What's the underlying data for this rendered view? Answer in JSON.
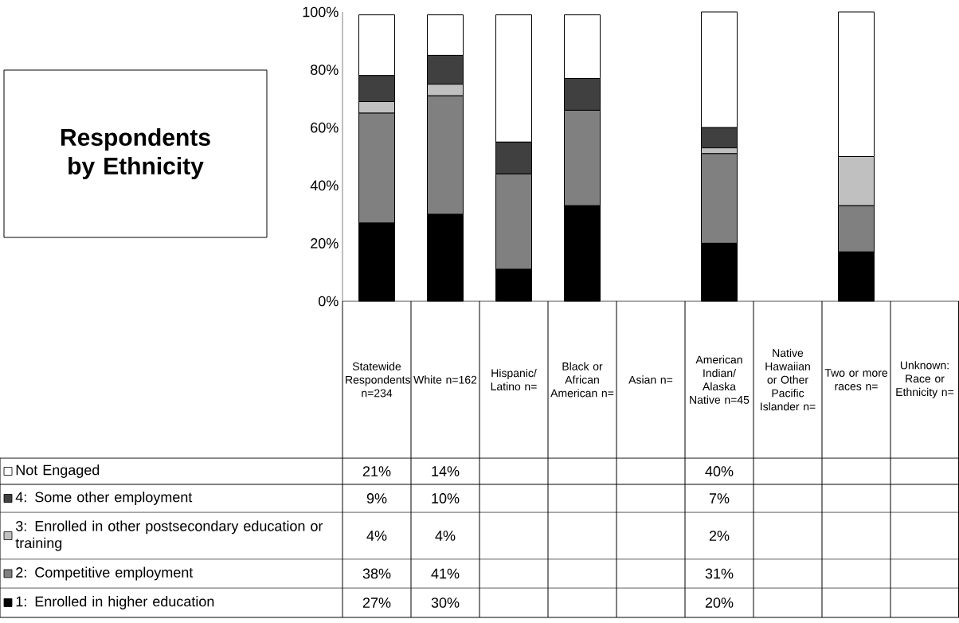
{
  "chart_data": {
    "type": "bar",
    "stacked": true,
    "title": "Respondents by Ethnicity",
    "categories": [
      "Statewide Respondents n=234",
      "White n=162",
      "Hispanic/ Latino n=",
      "Black or African American n=",
      "Asian n=",
      "American Indian/ Alaska Native n=45",
      "Native Hawaiian or Other Pacific Islander n=",
      "Two or more races n=",
      "Unknown: Race or Ethnicity n="
    ],
    "ylim": [
      0,
      100
    ],
    "yticks": [
      {
        "value": 0,
        "label": "0%"
      },
      {
        "value": 20,
        "label": "20%"
      },
      {
        "value": 40,
        "label": "40%"
      },
      {
        "value": 60,
        "label": "60%"
      },
      {
        "value": 80,
        "label": "80%"
      },
      {
        "value": 100,
        "label": "100%"
      }
    ],
    "legend": "bottom left",
    "series": [
      {
        "name": "1: Enrolled in higher education",
        "color": "#000000",
        "values": [
          27,
          30,
          11,
          33,
          null,
          20,
          null,
          17,
          null
        ],
        "value_labels": [
          "27%",
          "30%",
          null,
          null,
          null,
          "20%",
          null,
          null,
          null
        ]
      },
      {
        "name": "2: Competitive employment",
        "color": "#808080",
        "values": [
          38,
          41,
          33,
          33,
          null,
          31,
          null,
          16,
          null
        ],
        "value_labels": [
          "38%",
          "41%",
          null,
          null,
          null,
          "31%",
          null,
          null,
          null
        ]
      },
      {
        "name": "3: Enrolled in other postsecondary education or training",
        "color": "#c0c0c0",
        "values": [
          4,
          4,
          0,
          0,
          null,
          2,
          null,
          17,
          null
        ],
        "value_labels": [
          "4%",
          "4%",
          null,
          null,
          null,
          "2%",
          null,
          null,
          null
        ]
      },
      {
        "name": "4: Some other employment",
        "color": "#404040",
        "values": [
          9,
          10,
          11,
          11,
          null,
          7,
          null,
          0,
          null
        ],
        "value_labels": [
          "9%",
          "10%",
          null,
          null,
          null,
          "7%",
          null,
          null,
          null
        ]
      },
      {
        "name": "Not Engaged",
        "color": "#ffffff",
        "values": [
          21,
          14,
          44,
          22,
          null,
          40,
          null,
          50,
          null
        ],
        "value_labels": [
          "21%",
          "14%",
          null,
          null,
          null,
          "40%",
          null,
          null,
          null
        ]
      }
    ]
  }
}
